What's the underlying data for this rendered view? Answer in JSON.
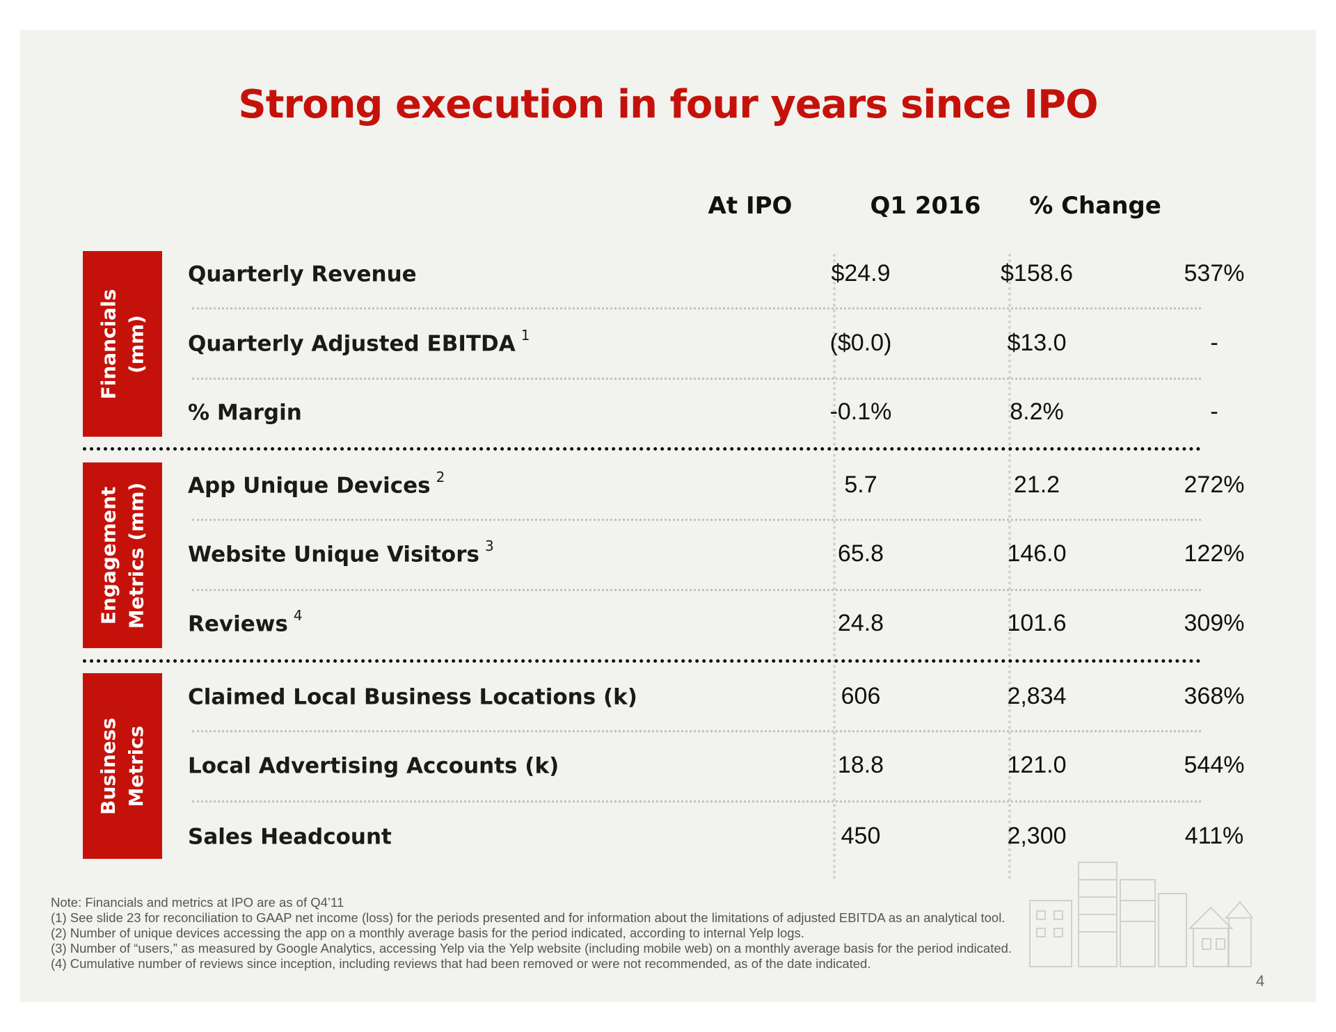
{
  "title": "Strong execution in four years since IPO",
  "columns": [
    "At IPO",
    "Q1 2016",
    "% Change"
  ],
  "groups": [
    {
      "lines": [
        "Financials",
        "(mm)"
      ]
    },
    {
      "lines": [
        "Engagement",
        "Metrics (mm)"
      ]
    },
    {
      "lines": [
        "Business",
        "Metrics"
      ]
    }
  ],
  "rows": [
    {
      "label": "Quarterly Revenue",
      "sup": "",
      "at_ipo": "$24.9",
      "q1_2016": "$158.6",
      "change": "537%"
    },
    {
      "label": "Quarterly Adjusted EBITDA",
      "sup": "1",
      "at_ipo": "($0.0)",
      "q1_2016": "$13.0",
      "change": "-"
    },
    {
      "label": "% Margin",
      "sup": "",
      "at_ipo": "-0.1%",
      "q1_2016": "8.2%",
      "change": "-"
    },
    {
      "label": "App Unique Devices",
      "sup": "2",
      "at_ipo": "5.7",
      "q1_2016": "21.2",
      "change": "272%"
    },
    {
      "label": "Website Unique Visitors",
      "sup": "3",
      "at_ipo": "65.8",
      "q1_2016": "146.0",
      "change": "122%"
    },
    {
      "label": "Reviews",
      "sup": "4",
      "at_ipo": "24.8",
      "q1_2016": "101.6",
      "change": "309%"
    },
    {
      "label": "Claimed Local Business Locations (k)",
      "sup": "",
      "at_ipo": "606",
      "q1_2016": "2,834",
      "change": "368%"
    },
    {
      "label": "Local Advertising Accounts (k)",
      "sup": "",
      "at_ipo": "18.8",
      "q1_2016": "121.0",
      "change": "544%"
    },
    {
      "label": "Sales Headcount",
      "sup": "",
      "at_ipo": "450",
      "q1_2016": "2,300",
      "change": "411%"
    }
  ],
  "notes": [
    "Note: Financials and metrics at IPO are as of  Q4’11",
    "(1) See slide 23 for reconciliation to GAAP net income (loss) for the periods presented and for information about the limitations of adjusted EBITDA as an analytical tool.",
    "(2) Number of unique devices accessing the app on a monthly average basis for the period indicated, according to internal Yelp logs.",
    "(3) Number of “users,” as measured by Google Analytics, accessing Yelp via the Yelp website (including mobile web) on a monthly average basis for the period indicated.",
    "(4) Cumulative number of reviews since inception, including reviews that had been removed or were not recommended, as of the date indicated."
  ],
  "page_number": "4",
  "colors": {
    "accent": "#c4120a",
    "background": "#f2f2ee",
    "text": "#111111"
  }
}
